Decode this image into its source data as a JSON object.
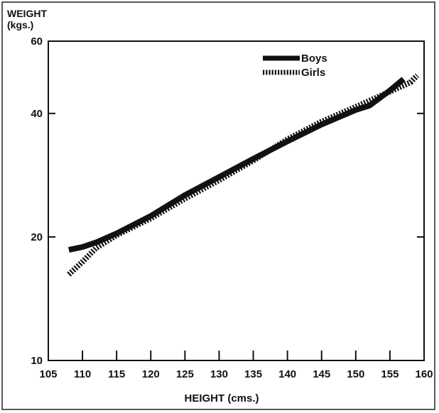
{
  "chart_data": {
    "type": "line",
    "ylabel": "WEIGHT",
    "yunit": "(kgs.)",
    "xlabel": "HEIGHT (cms.)",
    "xlim": [
      105,
      160
    ],
    "ylim": [
      10,
      60
    ],
    "yscale": "log",
    "x_ticks": [
      105,
      110,
      115,
      120,
      125,
      130,
      135,
      140,
      145,
      150,
      155,
      160
    ],
    "x_tick_labels": [
      "105",
      "110",
      "115",
      "120",
      "125",
      "130",
      "135",
      "140",
      "145",
      "150",
      "155",
      "160"
    ],
    "y_ticks": [
      10,
      20,
      40,
      60
    ],
    "y_tick_labels": [
      "10",
      "20",
      "40",
      "60"
    ],
    "grid": false,
    "legend_position": "top-right",
    "series": [
      {
        "name": "Boys",
        "style": "solid",
        "color": "#111111",
        "x": [
          108,
          110,
          112,
          115,
          120,
          125,
          130,
          135,
          140,
          145,
          150,
          152,
          155,
          157
        ],
        "y": [
          18.6,
          18.9,
          19.4,
          20.4,
          22.5,
          25.3,
          28.0,
          31.0,
          34.2,
          37.6,
          40.8,
          41.8,
          45.5,
          48.5
        ]
      },
      {
        "name": "Girls",
        "style": "dotted",
        "color": "#111111",
        "x": [
          108,
          110,
          112,
          115,
          120,
          125,
          130,
          135,
          140,
          145,
          150,
          155,
          158,
          159
        ],
        "y": [
          16.2,
          17.4,
          18.8,
          20.2,
          22.2,
          24.8,
          27.5,
          30.7,
          34.6,
          38.2,
          41.5,
          45.2,
          47.6,
          49.5
        ]
      }
    ]
  }
}
